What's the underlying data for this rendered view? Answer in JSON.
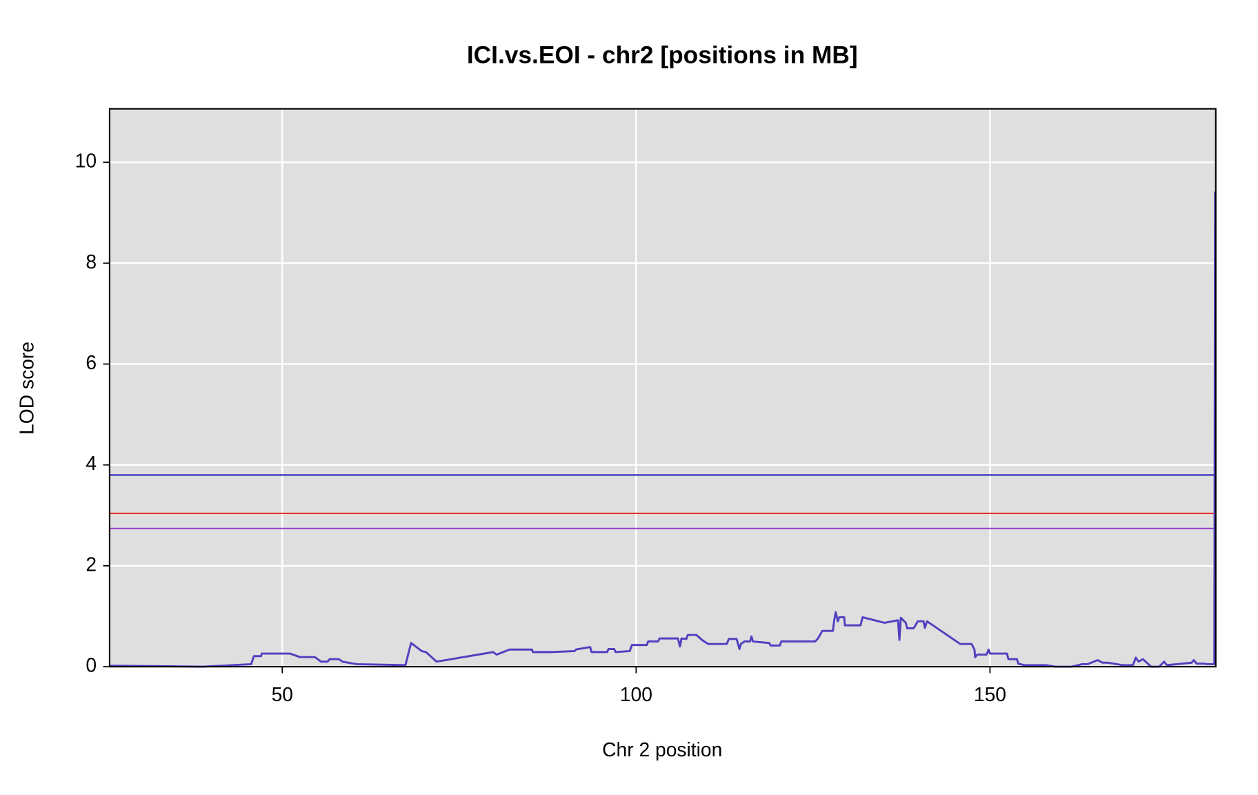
{
  "chart_data": {
    "type": "line",
    "title": "ICI.vs.EOI - chr2 [positions in MB]",
    "x_label": "Chr 2 position",
    "y_label": "LOD score",
    "xlim": [
      25.6,
      181.9
    ],
    "ylim": [
      0,
      11.06
    ],
    "xticks": [
      50,
      100,
      150
    ],
    "yticks": [
      0,
      2,
      4,
      6,
      8,
      10
    ],
    "grid": true,
    "background": "#dfdfdf",
    "thresholds": [
      {
        "value": 3.8,
        "color": "#2a2ab8"
      },
      {
        "value": 3.04,
        "color": "#e8302a"
      },
      {
        "value": 2.74,
        "color": "#9b40d0"
      }
    ],
    "series": [
      {
        "color": "#5040c0",
        "x": [
          25.6,
          38.8,
          45.6,
          46,
          47,
          47.1,
          51.1,
          52.5,
          54.6,
          55.5,
          56.4,
          56.7,
          58,
          58.5,
          60.1,
          60.6,
          67.4,
          68.2,
          69.7,
          70.3,
          71.8,
          79.8,
          80.3,
          82.1,
          85.3,
          85.4,
          88.1,
          91.3,
          91.5,
          93.5,
          93.7,
          95.9,
          96.1,
          96.9,
          97.1,
          99.1,
          99.4,
          101.5,
          101.7,
          103.1,
          103.3,
          105.9,
          106.2,
          106.4,
          107.1,
          107.3,
          108.5,
          109.4,
          110.2,
          112.8,
          113.1,
          114.2,
          114.6,
          114.8,
          115.3,
          116.1,
          116.3,
          116.5,
          118.8,
          119,
          120.3,
          120.5,
          125.3,
          125.7,
          126.3,
          127.8,
          128,
          128.2,
          128.5,
          128.7,
          129.4,
          129.5,
          131.7,
          132,
          135.1,
          137,
          137.2,
          137.4,
          138.1,
          138.3,
          139.2,
          139.8,
          140.6,
          140.8,
          141.1,
          145.8,
          147.4,
          147.8,
          147.9,
          148.2,
          149.5,
          149.8,
          150,
          152.4,
          152.6,
          153.8,
          154,
          154.9,
          158,
          159.2,
          161.5,
          163,
          163.8,
          165.2,
          165.9,
          166.6,
          168.8,
          170.2,
          170.6,
          171,
          171.6,
          172.3,
          172.8,
          173.9,
          174.6,
          175,
          178.5,
          178.8,
          179.2,
          180.4,
          180.6,
          181.7,
          181.8
        ],
        "values": [
          0.02,
          0,
          0.05,
          0.21,
          0.21,
          0.26,
          0.26,
          0.19,
          0.19,
          0.1,
          0.1,
          0.15,
          0.15,
          0.1,
          0.06,
          0.05,
          0.03,
          0.47,
          0.31,
          0.29,
          0.1,
          0.29,
          0.24,
          0.34,
          0.34,
          0.29,
          0.29,
          0.31,
          0.34,
          0.39,
          0.29,
          0.29,
          0.35,
          0.35,
          0.29,
          0.31,
          0.43,
          0.43,
          0.5,
          0.5,
          0.56,
          0.56,
          0.4,
          0.56,
          0.55,
          0.63,
          0.63,
          0.52,
          0.45,
          0.45,
          0.55,
          0.55,
          0.35,
          0.45,
          0.5,
          0.5,
          0.6,
          0.5,
          0.47,
          0.42,
          0.42,
          0.5,
          0.5,
          0.56,
          0.71,
          0.71,
          0.93,
          1.08,
          0.9,
          0.98,
          0.98,
          0.82,
          0.82,
          0.98,
          0.87,
          0.92,
          0.53,
          0.97,
          0.87,
          0.76,
          0.76,
          0.9,
          0.9,
          0.77,
          0.9,
          0.45,
          0.45,
          0.34,
          0.19,
          0.24,
          0.24,
          0.34,
          0.26,
          0.26,
          0.15,
          0.15,
          0.06,
          0.03,
          0.03,
          0,
          0,
          0.05,
          0.05,
          0.13,
          0.08,
          0.08,
          0.03,
          0.03,
          0.18,
          0.1,
          0.15,
          0.06,
          0,
          0,
          0.1,
          0.03,
          0.08,
          0.13,
          0.06,
          0.06,
          0.05,
          0.05,
          9.42
        ]
      }
    ]
  }
}
